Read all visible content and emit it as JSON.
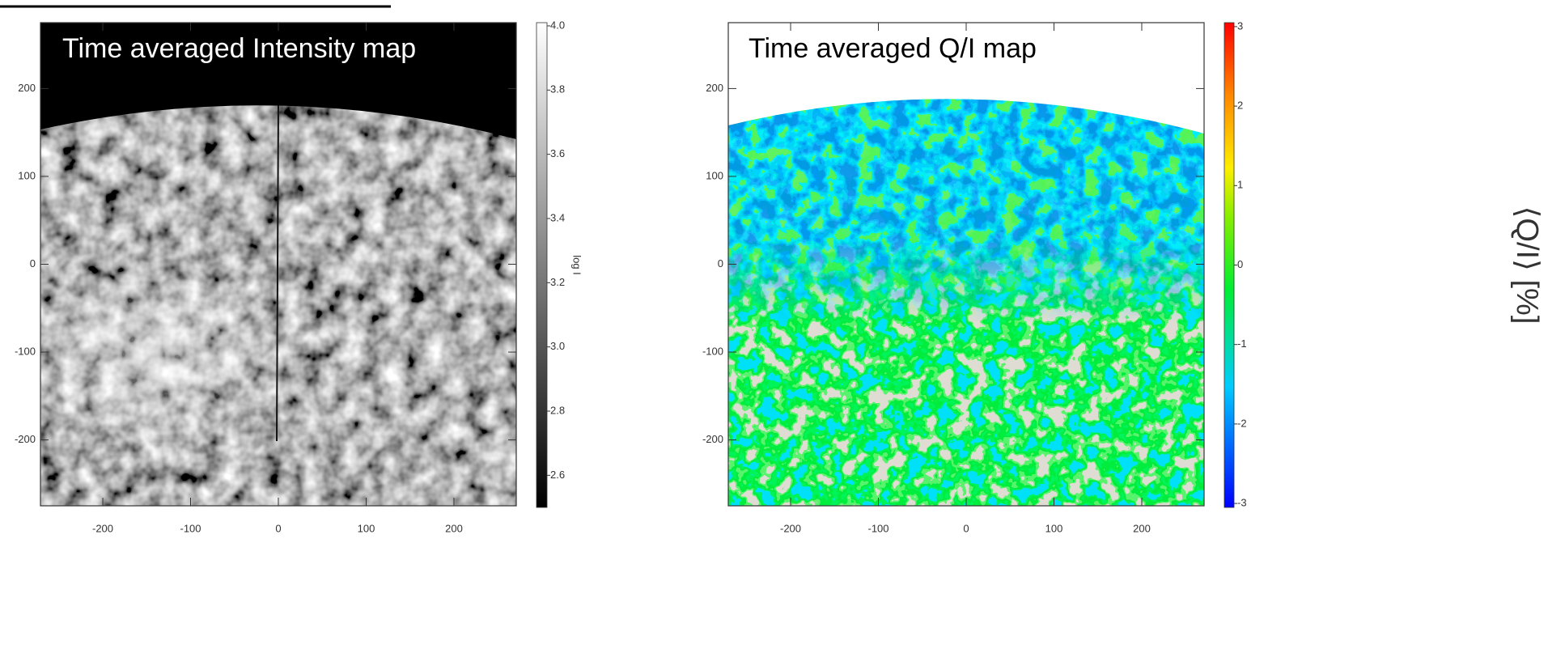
{
  "chart_data": [
    {
      "type": "image",
      "title": "Time averaged Intensity map",
      "colormap": "gray",
      "xlim": [
        -271,
        271
      ],
      "ylim": [
        -275,
        275
      ],
      "xticks": [
        -200,
        -100,
        0,
        100,
        200
      ],
      "yticks": [
        -200,
        -100,
        0,
        100,
        200
      ],
      "colorbar": {
        "label": "log I",
        "lim": [
          2.5,
          4.01
        ],
        "ticks": [
          2.6,
          2.8,
          {
            "value": 3,
            "label": "3.0"
          },
          3.2,
          3.4,
          3.6,
          3.8,
          {
            "value": 4,
            "label": "4.0"
          }
        ]
      }
    },
    {
      "type": "image",
      "title": "Time averaged Q/I map",
      "colormap": "rainbow",
      "xlim": [
        -271,
        271
      ],
      "ylim": [
        -275,
        275
      ],
      "xticks": [
        -200,
        -100,
        0,
        100,
        200
      ],
      "yticks": [
        -200,
        -100,
        0,
        100,
        200
      ],
      "colorbar": {
        "label": "⟨Q/I⟩ [%]",
        "lim": [
          -3.05,
          3.05
        ],
        "ticks": [
          -3,
          -2,
          -1,
          0,
          1,
          2,
          3
        ]
      }
    }
  ]
}
